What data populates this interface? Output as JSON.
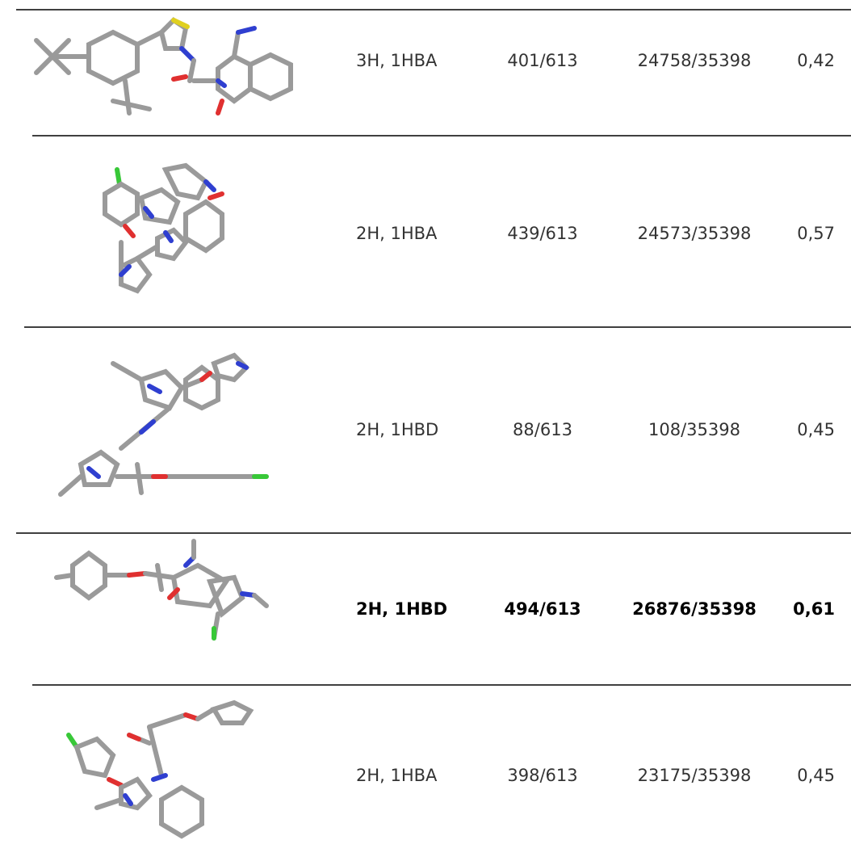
{
  "table": {
    "rows": [
      [
        "3H, 1HBA",
        "401/613",
        "24758/35398",
        "0,42"
      ],
      [
        "2H, 1HBA",
        "439/613",
        "24573/35398",
        "0,57"
      ],
      [
        "2H, 1HBD",
        "88/613",
        "108/35398",
        "0,45"
      ],
      [
        "2H, 1HBD",
        "494/613",
        "26876/35398",
        "0,61"
      ],
      [
        "2H, 1HBA",
        "398/613",
        "23175/35398",
        "0,45"
      ]
    ]
  }
}
